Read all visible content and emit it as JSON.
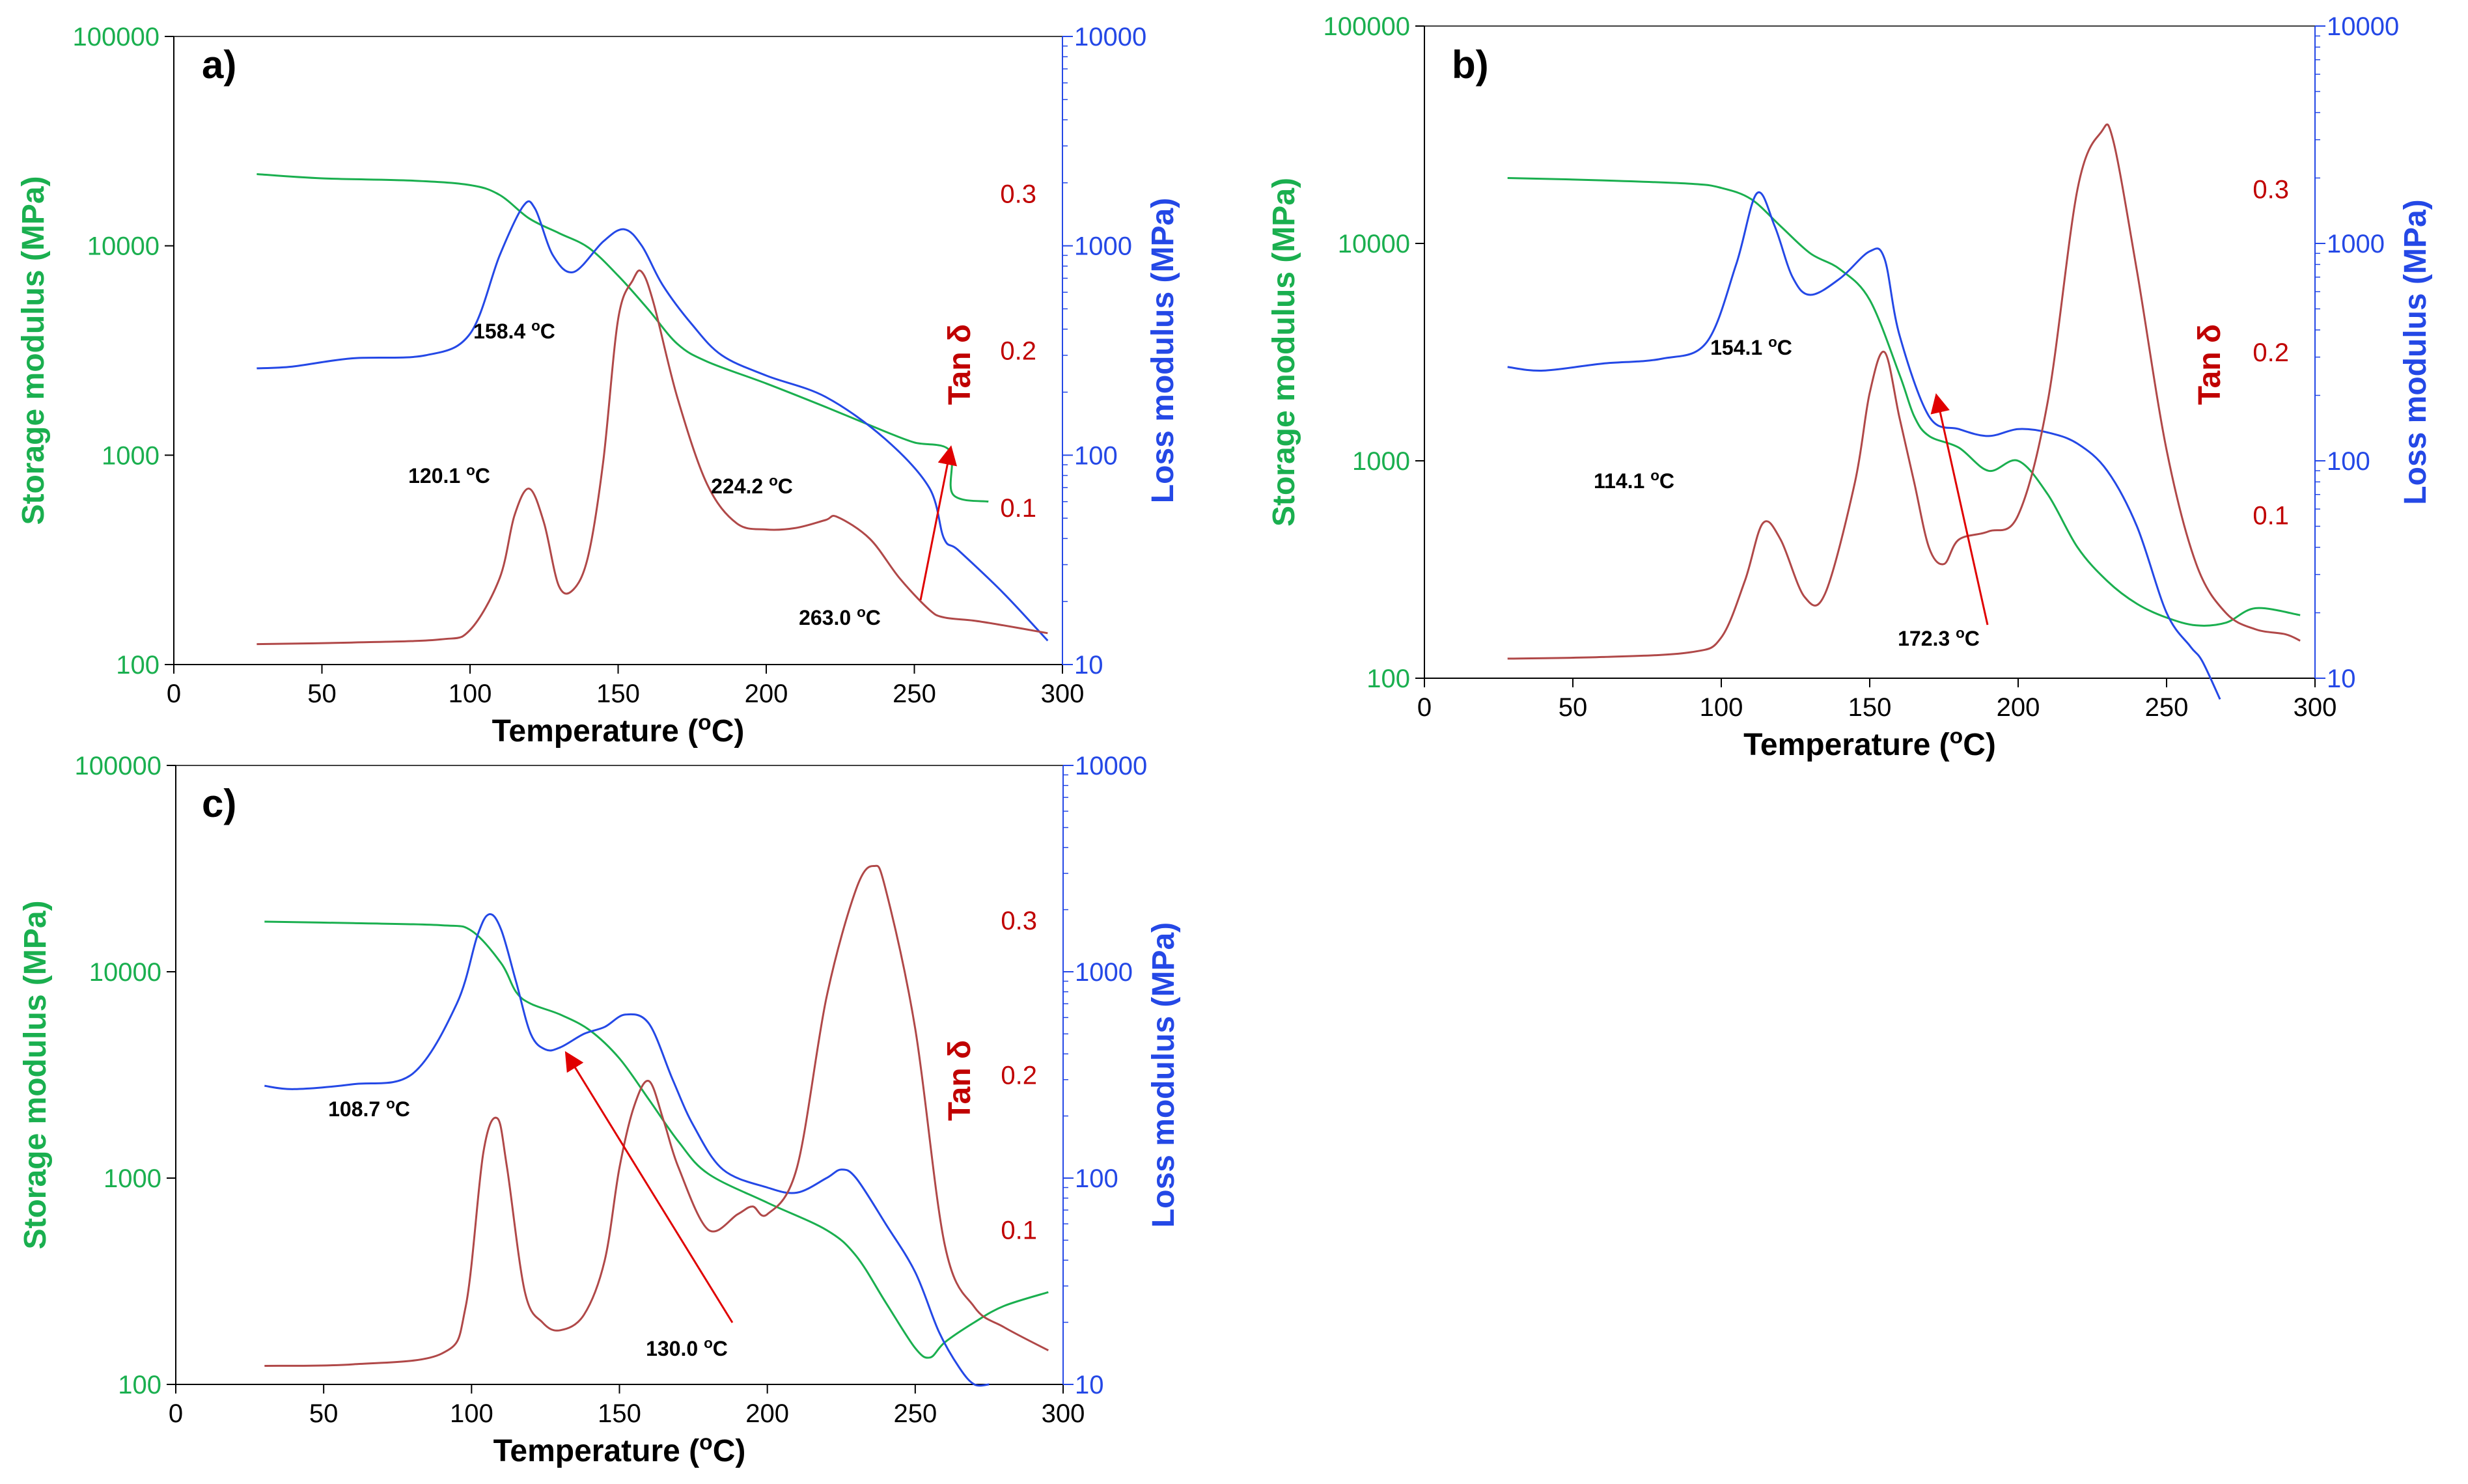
{
  "colors": {
    "storage": "#1aaf4f",
    "loss": "#2448e6",
    "tan": "#c00000",
    "tan_line": "#b04848",
    "axis": "#000000",
    "arrow": "#e00000"
  },
  "chart_data": [
    {
      "panel": "a)",
      "type": "line",
      "xlabel": "Temperature (oC)",
      "ylabel_left": "Storage modulus (MPa)",
      "ylabel_right": "Loss modulus (MPa)",
      "ylabel_tan": "Tan δ",
      "x_ticks": [
        "0",
        "50",
        "100",
        "150",
        "200",
        "250",
        "300"
      ],
      "y_left_ticks": [
        "100",
        "1000",
        "10000",
        "100000"
      ],
      "y_right_ticks": [
        "10",
        "100",
        "1000",
        "10000"
      ],
      "tan_ticks": [
        "0.1",
        "0.2",
        "0.3"
      ],
      "xlim": [
        0,
        300
      ],
      "ylim_left": [
        100,
        100000
      ],
      "ylim_right": [
        10,
        10000
      ],
      "tan_range": [
        0.0,
        0.4
      ],
      "series": [
        {
          "name": "Storage modulus",
          "axis": "left",
          "color": "storage",
          "x": [
            28,
            50,
            80,
            100,
            110,
            120,
            130,
            140,
            150,
            160,
            170,
            180,
            200,
            220,
            240,
            250,
            262,
            263,
            275
          ],
          "values": [
            22000,
            21000,
            20500,
            19500,
            17500,
            13500,
            11500,
            9800,
            7200,
            5000,
            3400,
            2800,
            2200,
            1700,
            1300,
            1150,
            1050,
            650,
            600
          ]
        },
        {
          "name": "Loss modulus",
          "axis": "right",
          "color": "loss",
          "x": [
            28,
            40,
            60,
            85,
            100,
            110,
            118,
            122,
            128,
            135,
            145,
            152,
            158,
            165,
            175,
            185,
            200,
            220,
            240,
            255,
            260,
            265,
            280,
            295
          ],
          "values": [
            260,
            265,
            290,
            300,
            380,
            900,
            1550,
            1500,
            900,
            750,
            1050,
            1200,
            1000,
            650,
            420,
            300,
            240,
            190,
            120,
            70,
            40,
            35,
            22,
            13
          ]
        },
        {
          "name": "Tan delta",
          "axis": "tan",
          "color": "tan_line",
          "x": [
            28,
            60,
            90,
            100,
            110,
            115,
            120,
            125,
            130,
            135,
            140,
            145,
            150,
            155,
            158,
            162,
            170,
            180,
            190,
            200,
            210,
            220,
            224,
            235,
            245,
            255,
            260,
            270,
            280,
            295
          ],
          "values": [
            0.013,
            0.014,
            0.016,
            0.022,
            0.055,
            0.095,
            0.112,
            0.09,
            0.05,
            0.048,
            0.07,
            0.13,
            0.22,
            0.245,
            0.25,
            0.23,
            0.17,
            0.115,
            0.09,
            0.086,
            0.087,
            0.092,
            0.094,
            0.08,
            0.055,
            0.035,
            0.03,
            0.028,
            0.025,
            0.02
          ]
        }
      ],
      "annotations": [
        "120.1 oC",
        "158.4 oC",
        "224.2 oC",
        "263.0 oC"
      ]
    },
    {
      "panel": "b)",
      "type": "line",
      "xlabel": "Temperature (oC)",
      "ylabel_left": "Storage modulus (MPa)",
      "ylabel_right": "Loss modulus (MPa)",
      "ylabel_tan": "Tan δ",
      "x_ticks": [
        "0",
        "50",
        "100",
        "150",
        "200",
        "250",
        "300"
      ],
      "y_left_ticks": [
        "100",
        "1000",
        "10000",
        "100000"
      ],
      "y_right_ticks": [
        "10",
        "100",
        "1000",
        "10000"
      ],
      "tan_ticks": [
        "0.1",
        "0.2",
        "0.3"
      ],
      "xlim": [
        0,
        300
      ],
      "ylim_left": [
        100,
        100000
      ],
      "ylim_right": [
        10,
        10000
      ],
      "tan_range": [
        0.0,
        0.4
      ],
      "series": [
        {
          "name": "Storage modulus",
          "axis": "left",
          "color": "storage",
          "x": [
            28,
            60,
            90,
            100,
            110,
            120,
            130,
            140,
            150,
            160,
            165,
            170,
            180,
            190,
            200,
            210,
            220,
            230,
            240,
            250,
            260,
            270,
            280,
            295
          ],
          "values": [
            20000,
            19500,
            18800,
            18000,
            16000,
            12000,
            9000,
            7600,
            5500,
            2500,
            1600,
            1300,
            1150,
            900,
            1000,
            700,
            400,
            280,
            220,
            190,
            175,
            180,
            210,
            195
          ]
        },
        {
          "name": "Loss modulus",
          "axis": "right",
          "color": "loss",
          "x": [
            28,
            40,
            60,
            80,
            95,
            105,
            112,
            118,
            124,
            130,
            140,
            150,
            155,
            160,
            170,
            180,
            190,
            200,
            210,
            220,
            230,
            240,
            250,
            258,
            262,
            268
          ],
          "values": [
            270,
            260,
            280,
            295,
            350,
            800,
            1700,
            1200,
            700,
            580,
            690,
            920,
            850,
            380,
            160,
            140,
            130,
            140,
            135,
            120,
            90,
            50,
            20,
            14,
            12,
            8
          ]
        },
        {
          "name": "Tan delta",
          "axis": "tan",
          "color": "tan_line",
          "x": [
            28,
            60,
            90,
            100,
            108,
            114,
            120,
            128,
            135,
            145,
            150,
            155,
            160,
            165,
            170,
            175,
            180,
            190,
            200,
            210,
            220,
            228,
            232,
            240,
            250,
            260,
            270,
            280,
            290,
            295
          ],
          "values": [
            0.012,
            0.013,
            0.016,
            0.025,
            0.06,
            0.095,
            0.085,
            0.05,
            0.052,
            0.12,
            0.175,
            0.2,
            0.16,
            0.12,
            0.08,
            0.07,
            0.085,
            0.09,
            0.1,
            0.17,
            0.3,
            0.335,
            0.33,
            0.25,
            0.14,
            0.07,
            0.04,
            0.03,
            0.027,
            0.023
          ]
        }
      ],
      "annotations": [
        "114.1 oC",
        "154.1 oC",
        "172.3 oC"
      ]
    },
    {
      "panel": "c)",
      "type": "line",
      "xlabel": "Temperature (oC)",
      "ylabel_left": "Storage modulus (MPa)",
      "ylabel_right": "Loss modulus (MPa)",
      "ylabel_tan": "Tan δ",
      "x_ticks": [
        "0",
        "50",
        "100",
        "150",
        "200",
        "250",
        "300"
      ],
      "y_left_ticks": [
        "100",
        "1000",
        "10000",
        "100000"
      ],
      "y_right_ticks": [
        "10",
        "100",
        "1000",
        "10000"
      ],
      "tan_ticks": [
        "0.1",
        "0.2",
        "0.3"
      ],
      "xlim": [
        0,
        300
      ],
      "ylim_left": [
        100,
        100000
      ],
      "ylim_right": [
        10,
        10000
      ],
      "tan_range": [
        0.0,
        0.4
      ],
      "series": [
        {
          "name": "Storage modulus",
          "axis": "left",
          "color": "storage",
          "x": [
            30,
            60,
            90,
            100,
            110,
            115,
            120,
            130,
            140,
            150,
            160,
            170,
            180,
            200,
            220,
            230,
            240,
            250,
            255,
            260,
            270,
            280,
            295
          ],
          "values": [
            17500,
            17200,
            16800,
            15800,
            11000,
            8000,
            7000,
            6200,
            5200,
            3800,
            2400,
            1500,
            1050,
            760,
            560,
            420,
            250,
            150,
            135,
            160,
            200,
            240,
            280
          ]
        },
        {
          "name": "Loss modulus",
          "axis": "right",
          "color": "loss",
          "x": [
            30,
            40,
            60,
            80,
            95,
            102,
            106,
            110,
            115,
            120,
            125,
            130,
            138,
            145,
            152,
            160,
            168,
            175,
            185,
            200,
            210,
            220,
            225,
            230,
            240,
            250,
            258,
            265,
            270,
            275
          ],
          "values": [
            280,
            270,
            285,
            320,
            700,
            1500,
            1900,
            1600,
            900,
            500,
            420,
            430,
            500,
            540,
            620,
            560,
            300,
            180,
            110,
            90,
            85,
            100,
            110,
            100,
            60,
            35,
            18,
            12,
            10,
            10
          ]
        },
        {
          "name": "Tan delta",
          "axis": "tan",
          "color": "tan_line",
          "x": [
            30,
            60,
            90,
            98,
            104,
            108.7,
            112,
            118,
            124,
            130,
            138,
            145,
            150,
            155,
            160,
            165,
            170,
            180,
            190,
            195,
            200,
            210,
            220,
            230,
            236,
            240,
            250,
            260,
            270,
            280,
            295
          ],
          "values": [
            0.012,
            0.013,
            0.02,
            0.05,
            0.15,
            0.172,
            0.14,
            0.06,
            0.04,
            0.035,
            0.045,
            0.08,
            0.14,
            0.18,
            0.196,
            0.17,
            0.14,
            0.1,
            0.11,
            0.115,
            0.11,
            0.14,
            0.25,
            0.32,
            0.335,
            0.32,
            0.23,
            0.09,
            0.05,
            0.037,
            0.022
          ]
        }
      ],
      "annotations": [
        "108.7 oC",
        "130.0 oC"
      ]
    }
  ]
}
